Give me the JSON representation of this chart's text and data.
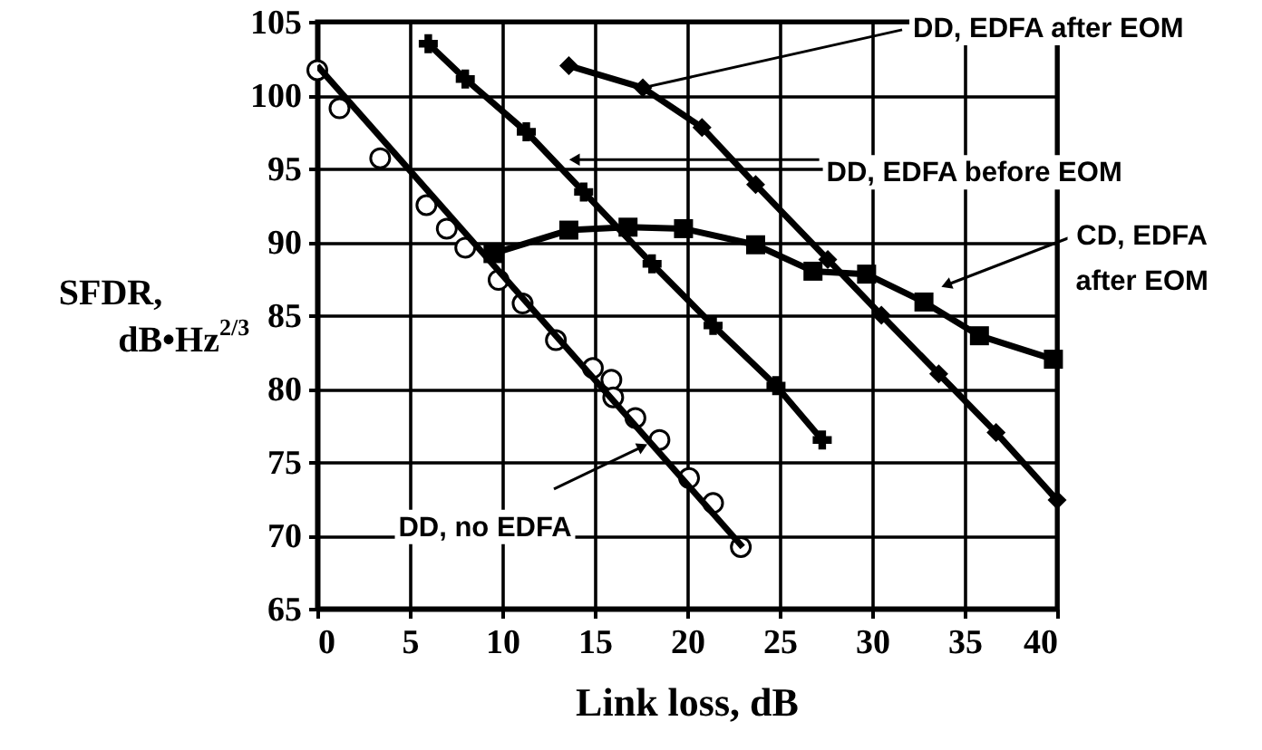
{
  "chart_data": {
    "type": "line",
    "xlabel": "Link loss, dB",
    "ylabel": "SFDR,\ndB•Hz$^{2/3}$",
    "xlim": [
      0,
      40
    ],
    "xticks": [
      0,
      5,
      10,
      15,
      20,
      25,
      30,
      35,
      40
    ],
    "ylim": [
      65,
      105
    ],
    "yticks": [
      65,
      70,
      75,
      80,
      85,
      90,
      95,
      100,
      105
    ],
    "grid": true,
    "series": [
      {
        "type": "scatter",
        "marker": "circle",
        "color": "#000000",
        "x": [
          0,
          1.2,
          3.4,
          5.9,
          7.0,
          8.0,
          9.8,
          11.1,
          12.9,
          14.9,
          15.9,
          16.0,
          17.2,
          18.5,
          20.1,
          21.4,
          22.9
        ],
        "values": [
          101.7,
          99.1,
          95.7,
          92.5,
          90.9,
          89.6,
          87.4,
          85.8,
          83.3,
          81.4,
          80.6,
          79.4,
          78.0,
          76.5,
          73.9,
          72.2,
          69.2
        ]
      },
      {
        "marker": "none",
        "color": "#000000",
        "x": [
          0,
          23
        ],
        "values": [
          102,
          69.2
        ]
      },
      {
        "marker": "cross",
        "color": "#000000",
        "x": [
          6.0,
          8.0,
          11.3,
          14.4,
          18.1,
          21.4,
          24.8,
          27.3
        ],
        "values": [
          103.5,
          101.1,
          97.5,
          93.4,
          88.5,
          84.3,
          80.2,
          76.5
        ]
      },
      {
        "marker": "diamond",
        "color": "#000000",
        "x": [
          13.6,
          17.6,
          20.8,
          23.7,
          27.6,
          30.5,
          33.6,
          36.7,
          40
        ],
        "values": [
          102.0,
          100.5,
          97.8,
          93.9,
          88.8,
          85.0,
          81.0,
          77.0,
          72.4
        ]
      },
      {
        "marker": "square",
        "color": "#000000",
        "x": [
          9.5,
          13.6,
          16.8,
          19.8,
          23.7,
          26.8,
          29.7,
          32.8,
          35.8,
          39.8
        ],
        "values": [
          89.2,
          90.8,
          91.0,
          90.9,
          89.8,
          88.0,
          87.8,
          85.9,
          83.6,
          82.0
        ]
      }
    ],
    "annotations": [
      {
        "text": "DD, EDFA after EOM",
        "x": 17.6,
        "y": 100.5
      },
      {
        "text": "DD, EDFA before EOM",
        "x": 14.0,
        "y": 95.6
      },
      {
        "text": "CD, EDFA\nafter EOM",
        "x": 34.1,
        "y": 87.1
      },
      {
        "text": "DD, no EDFA",
        "x": 17.5,
        "y": 76.0
      }
    ]
  }
}
